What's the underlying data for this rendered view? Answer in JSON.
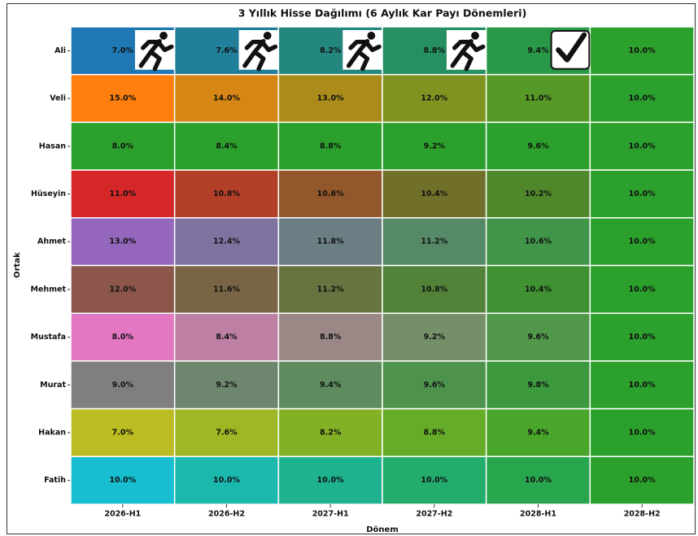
{
  "chart_data": {
    "type": "heatmap",
    "title": "3 Yıllık Hisse Dağılımı (6 Aylık Kar Payı Dönemleri)",
    "x_label": "Dönem",
    "y_label": "Ortak",
    "columns": [
      "2026-H1",
      "2026-H2",
      "2027-H1",
      "2027-H2",
      "2028-H1",
      "2028-H2"
    ],
    "rows": [
      "Ali",
      "Veli",
      "Hasan",
      "Hüseyin",
      "Ahmet",
      "Mehmet",
      "Mustafa",
      "Murat",
      "Hakan",
      "Fatih"
    ],
    "values": [
      [
        7.0,
        7.6,
        8.2,
        8.8,
        9.4,
        10.0
      ],
      [
        15.0,
        14.0,
        13.0,
        12.0,
        11.0,
        10.0
      ],
      [
        8.0,
        8.4,
        8.8,
        9.2,
        9.6,
        10.0
      ],
      [
        11.0,
        10.8,
        10.6,
        10.4,
        10.2,
        10.0
      ],
      [
        13.0,
        12.4,
        11.8,
        11.2,
        10.6,
        10.0
      ],
      [
        12.0,
        11.6,
        11.2,
        10.8,
        10.4,
        10.0
      ],
      [
        8.0,
        8.4,
        8.8,
        9.2,
        9.6,
        10.0
      ],
      [
        9.0,
        9.2,
        9.4,
        9.6,
        9.8,
        10.0
      ],
      [
        7.0,
        7.6,
        8.2,
        8.8,
        9.4,
        10.0
      ],
      [
        10.0,
        10.0,
        10.0,
        10.0,
        10.0,
        10.0
      ]
    ],
    "value_labels": [
      [
        "7.0%",
        "7.6%",
        "8.2%",
        "8.8%",
        "9.4%",
        "10.0%"
      ],
      [
        "15.0%",
        "14.0%",
        "13.0%",
        "12.0%",
        "11.0%",
        "10.0%"
      ],
      [
        "8.0%",
        "8.4%",
        "8.8%",
        "9.2%",
        "9.6%",
        "10.0%"
      ],
      [
        "11.0%",
        "10.8%",
        "10.6%",
        "10.4%",
        "10.2%",
        "10.0%"
      ],
      [
        "13.0%",
        "12.4%",
        "11.8%",
        "11.2%",
        "10.6%",
        "10.0%"
      ],
      [
        "12.0%",
        "11.6%",
        "11.2%",
        "10.8%",
        "10.4%",
        "10.0%"
      ],
      [
        "8.0%",
        "8.4%",
        "8.8%",
        "9.2%",
        "9.6%",
        "10.0%"
      ],
      [
        "9.0%",
        "9.2%",
        "9.4%",
        "9.6%",
        "9.8%",
        "10.0%"
      ],
      [
        "7.0%",
        "7.6%",
        "8.2%",
        "8.8%",
        "9.4%",
        "10.0%"
      ],
      [
        "10.0%",
        "10.0%",
        "10.0%",
        "10.0%",
        "10.0%",
        "10.0%"
      ]
    ],
    "row_colors": [
      "#1f77b4",
      "#ff7f0e",
      "#2ca02c",
      "#d62728",
      "#9467bd",
      "#8c564b",
      "#e377c2",
      "#7f7f7f",
      "#bcbd22",
      "#17becf"
    ],
    "end_color": "#2ca02c"
  }
}
